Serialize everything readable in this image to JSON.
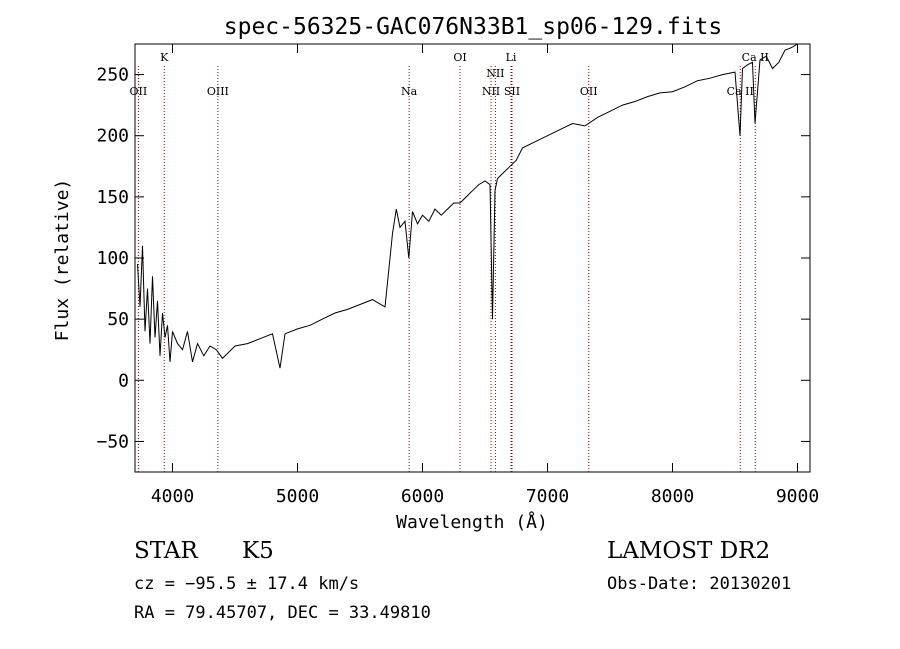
{
  "chart_data": {
    "type": "line",
    "title": "spec-56325-GAC076N33B1_sp06-129.fits",
    "xlabel": "Wavelength (Å)",
    "ylabel": "Flux (relative)",
    "xlim": [
      3700,
      9100
    ],
    "ylim": [
      -75,
      275
    ],
    "xticks": [
      4000,
      5000,
      6000,
      7000,
      8000,
      9000
    ],
    "xtick_labels": [
      "4000",
      "5000",
      "6000",
      "7000",
      "8000",
      "9000"
    ],
    "yticks": [
      -50,
      0,
      50,
      100,
      150,
      200,
      250
    ],
    "ytick_labels": [
      "−50",
      "0",
      "50",
      "100",
      "150",
      "200",
      "250"
    ],
    "grid": false,
    "series": [
      {
        "x": [
          3720,
          3740,
          3760,
          3780,
          3800,
          3820,
          3840,
          3860,
          3880,
          3900,
          3920,
          3940,
          3960,
          3980,
          4000,
          4040,
          4080,
          4120,
          4160,
          4200,
          4250,
          4300,
          4350,
          4400,
          4500,
          4600,
          4700,
          4800,
          4860,
          4900,
          5000,
          5100,
          5200,
          5300,
          5400,
          5500,
          5600,
          5700,
          5760,
          5790,
          5820,
          5860,
          5890,
          5920,
          5960,
          6000,
          6050,
          6100,
          6150,
          6200,
          6250,
          6300,
          6350,
          6400,
          6450,
          6500,
          6540,
          6560,
          6580,
          6600,
          6650,
          6700,
          6750,
          6800,
          6900,
          7000,
          7100,
          7200,
          7300,
          7400,
          7500,
          7600,
          7700,
          7800,
          7900,
          8000,
          8100,
          8200,
          8300,
          8400,
          8500,
          8540,
          8560,
          8600,
          8640,
          8660,
          8700,
          8750,
          8800,
          8850,
          8900,
          8950,
          9000
        ],
        "y": [
          95,
          60,
          110,
          40,
          75,
          30,
          85,
          35,
          65,
          20,
          55,
          35,
          45,
          15,
          40,
          30,
          25,
          40,
          15,
          30,
          20,
          28,
          25,
          18,
          28,
          30,
          34,
          38,
          10,
          38,
          42,
          45,
          50,
          55,
          58,
          62,
          66,
          60,
          120,
          140,
          125,
          130,
          100,
          138,
          128,
          135,
          130,
          140,
          135,
          140,
          145,
          145,
          150,
          155,
          160,
          163,
          160,
          50,
          155,
          165,
          170,
          175,
          180,
          190,
          195,
          200,
          205,
          210,
          208,
          215,
          220,
          225,
          228,
          232,
          235,
          236,
          240,
          245,
          247,
          250,
          252,
          200,
          255,
          258,
          260,
          210,
          262,
          265,
          255,
          260,
          270,
          272,
          275
        ]
      }
    ],
    "annotations": [
      {
        "label": "OII",
        "x": 3727,
        "row": "low"
      },
      {
        "label": "K",
        "x": 3934,
        "row": "high"
      },
      {
        "label": "OIII",
        "x": 4363,
        "row": "low"
      },
      {
        "label": "Na",
        "x": 5893,
        "row": "low"
      },
      {
        "label": "OI",
        "x": 6300,
        "row": "high"
      },
      {
        "label": "NII",
        "x": 6548,
        "row": "low2"
      },
      {
        "label": "NII",
        "x": 6583,
        "row": "mid"
      },
      {
        "label": "Li",
        "x": 6708,
        "row": "high"
      },
      {
        "label": "SII",
        "x": 6716,
        "row": "low2"
      },
      {
        "label": "OII",
        "x": 7330,
        "row": "low"
      },
      {
        "label": "Ca II",
        "x": 8542,
        "row": "low"
      },
      {
        "label": "Ca II",
        "x": 8662,
        "row": "high"
      }
    ]
  },
  "info": {
    "object_class": "STAR",
    "subclass": "K5",
    "velocity": "cz = −95.5 ± 17.4 km/s",
    "coords": "RA =  79.45707, DEC =  33.49810",
    "survey": "LAMOST DR2",
    "obs_date": "Obs-Date: 20130201"
  }
}
